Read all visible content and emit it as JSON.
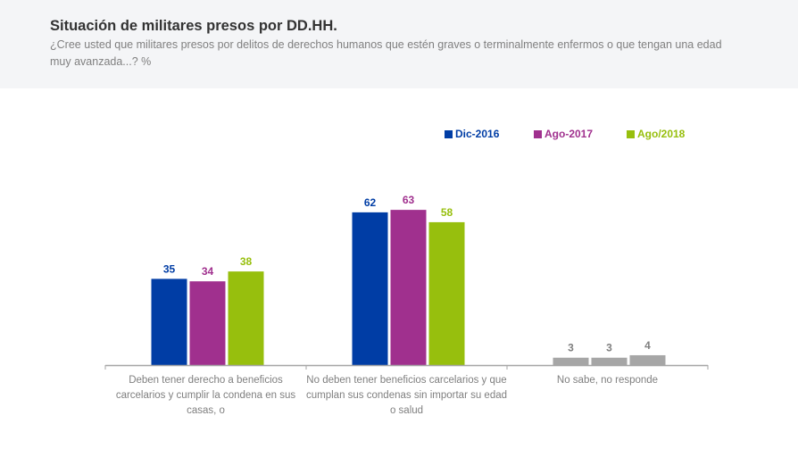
{
  "header": {
    "title": "Situación de militares presos por DD.HH.",
    "subtitle": "¿Cree usted que militares presos por delitos de derechos humanos que estén graves o terminalmente enfermos o que tengan una edad muy avanzada...? %"
  },
  "chart_data": {
    "type": "bar",
    "title": "Situación de militares presos por DD.HH.",
    "subtitle": "¿Cree usted que militares presos por delitos de derechos humanos que estén graves o terminalmente enfermos o que tengan una edad muy avanzada...? %",
    "xlabel": "",
    "ylabel": "",
    "ylim": [
      0,
      70
    ],
    "grid": false,
    "legend_position": "top-right",
    "categories": [
      "Deben tener derecho a beneficios carcelarios y cumplir la condena en sus casas, o",
      "No deben tener beneficios carcelarios y que cumplan sus condenas sin importar su edad o salud",
      "No sabe, no responde"
    ],
    "series": [
      {
        "name": "Dic-2016",
        "color": "#003da5",
        "values": [
          35,
          62,
          3
        ]
      },
      {
        "name": "Ago-2017",
        "color": "#a0308e",
        "values": [
          34,
          63,
          3
        ]
      },
      {
        "name": "Ago/2018",
        "color": "#97bf0d",
        "values": [
          38,
          58,
          4
        ]
      }
    ],
    "nr_color": "#a6a6a6",
    "axis_color": "#a6a6a6",
    "label_color": "#7f7f7f"
  }
}
